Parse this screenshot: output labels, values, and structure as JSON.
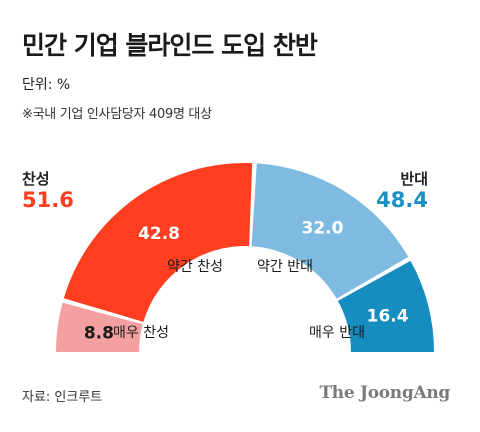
{
  "header": {
    "title": "민간 기업 블라인드 도입 찬반",
    "unit": "단위: %",
    "note": "※국내 기업 인사담당자 409명 대상"
  },
  "summary": {
    "support": {
      "label": "찬성",
      "value": "51.6",
      "color": "#ff3d1f"
    },
    "oppose": {
      "label": "반대",
      "value": "48.4",
      "color": "#1a90c4"
    }
  },
  "chart_data": {
    "type": "pie",
    "style": "half-donut",
    "title": "",
    "slices": [
      {
        "label": "매우 찬성",
        "value": 8.8,
        "color": "#f5a0a0"
      },
      {
        "label": "약간 찬성",
        "value": 42.8,
        "color": "#ff3d1f"
      },
      {
        "label": "약간 반대",
        "value": 32.0,
        "color": "#7fbbe1"
      },
      {
        "label": "매우 반대",
        "value": 16.4,
        "color": "#168dc1"
      }
    ]
  },
  "footer": {
    "source": "자료: 인크루트",
    "brand": "The JoongAng"
  }
}
